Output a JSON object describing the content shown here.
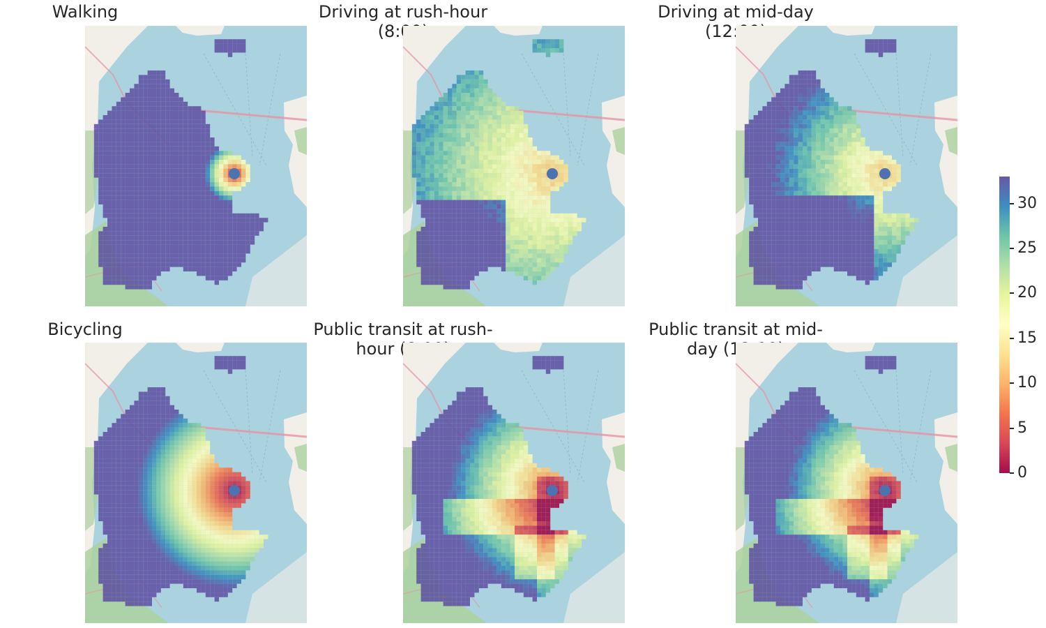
{
  "panels": [
    {
      "title": "Walking",
      "mode": "walking"
    },
    {
      "title": "Driving at rush-hour (8:00)",
      "mode": "drive-rush"
    },
    {
      "title": "Driving at mid-day (12:00)",
      "mode": "drive-mid"
    },
    {
      "title": "Bicycling",
      "mode": "bike"
    },
    {
      "title": "Public transit at rush-hour (8:00)",
      "mode": "transit-rush"
    },
    {
      "title": "Public transit at mid-day (12:00)",
      "mode": "transit-mid"
    }
  ],
  "colorbar": {
    "min": 0,
    "max": 33,
    "ticks": [
      "0",
      "5",
      "10",
      "15",
      "20",
      "25",
      "30"
    ],
    "colormap": "Spectral",
    "colors": [
      "#9e0142",
      "#d53e4f",
      "#f46d43",
      "#fdae61",
      "#fee08b",
      "#ffffbf",
      "#e6f598",
      "#abdda4",
      "#66c2a5",
      "#3288bd",
      "#5e4fa2"
    ]
  },
  "basemap": {
    "water_color": "#aad3df",
    "land_color": "#f2efe9",
    "park_color": "#add19e",
    "road_color": "#e892a2"
  },
  "origin_marker": {
    "color": "#4c72b0"
  }
}
